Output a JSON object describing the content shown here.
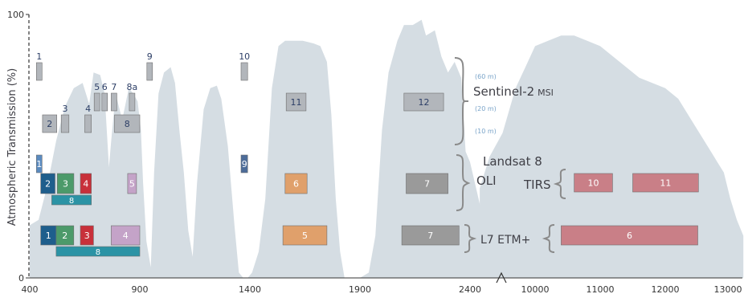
{
  "chart_data": {
    "type": "area",
    "title": "",
    "ylabel": "Atmospheric Transmission (%)",
    "ylim": [
      0,
      100
    ],
    "yticks": [
      "100",
      "0"
    ],
    "grid": false,
    "x_axis_break": "between 2400 and 10000",
    "xticks": [
      "400",
      "900",
      "1400",
      "1900",
      "2400",
      "10000",
      "11000",
      "12000",
      "13000"
    ],
    "colors": {
      "transmission": "#d5dde3",
      "sentinel": "#b2b6bb",
      "text": "#3f3f46",
      "axis": "#333333",
      "resolution_label": "#7aa4c9"
    },
    "transmission_reflective": {
      "unit": "nm",
      "points": [
        [
          400,
          20
        ],
        [
          440,
          22
        ],
        [
          480,
          35
        ],
        [
          520,
          52
        ],
        [
          560,
          65
        ],
        [
          600,
          72
        ],
        [
          640,
          74
        ],
        [
          670,
          66
        ],
        [
          690,
          78
        ],
        [
          720,
          77
        ],
        [
          740,
          70
        ],
        [
          760,
          42
        ],
        [
          770,
          52
        ],
        [
          790,
          70
        ],
        [
          820,
          60
        ],
        [
          850,
          72
        ],
        [
          870,
          70
        ],
        [
          890,
          67
        ],
        [
          905,
          56
        ],
        [
          915,
          36
        ],
        [
          930,
          14
        ],
        [
          950,
          4
        ],
        [
          965,
          40
        ],
        [
          985,
          70
        ],
        [
          1010,
          78
        ],
        [
          1040,
          80
        ],
        [
          1060,
          74
        ],
        [
          1080,
          56
        ],
        [
          1100,
          40
        ],
        [
          1120,
          18
        ],
        [
          1140,
          8
        ],
        [
          1160,
          36
        ],
        [
          1190,
          64
        ],
        [
          1220,
          72
        ],
        [
          1250,
          73
        ],
        [
          1270,
          68
        ],
        [
          1300,
          50
        ],
        [
          1330,
          20
        ],
        [
          1350,
          2
        ],
        [
          1370,
          0
        ],
        [
          1390,
          0
        ],
        [
          1410,
          2
        ],
        [
          1440,
          10
        ],
        [
          1470,
          30
        ],
        [
          1500,
          72
        ],
        [
          1530,
          88
        ],
        [
          1560,
          90
        ],
        [
          1600,
          90
        ],
        [
          1640,
          90
        ],
        [
          1690,
          89
        ],
        [
          1720,
          88
        ],
        [
          1750,
          82
        ],
        [
          1770,
          62
        ],
        [
          1790,
          30
        ],
        [
          1810,
          10
        ],
        [
          1830,
          0
        ],
        [
          1900,
          0
        ],
        [
          1940,
          2
        ],
        [
          1970,
          16
        ],
        [
          2000,
          56
        ],
        [
          2030,
          78
        ],
        [
          2070,
          90
        ],
        [
          2100,
          96
        ],
        [
          2140,
          96
        ],
        [
          2180,
          98
        ],
        [
          2200,
          92
        ],
        [
          2240,
          94
        ],
        [
          2270,
          84
        ],
        [
          2300,
          78
        ],
        [
          2330,
          82
        ],
        [
          2360,
          76
        ],
        [
          2380,
          48
        ],
        [
          2400,
          44
        ],
        [
          2450,
          26
        ],
        [
          2490,
          20
        ],
        [
          2500,
          18
        ]
      ]
    },
    "transmission_thermal": {
      "unit": "nm",
      "points": [
        [
          9150,
          34
        ],
        [
          9300,
          46
        ],
        [
          9500,
          55
        ],
        [
          9700,
          72
        ],
        [
          9850,
          80
        ],
        [
          10000,
          88
        ],
        [
          10200,
          90
        ],
        [
          10400,
          92
        ],
        [
          10600,
          92
        ],
        [
          10800,
          90
        ],
        [
          11000,
          88
        ],
        [
          11200,
          84
        ],
        [
          11400,
          80
        ],
        [
          11600,
          76
        ],
        [
          11800,
          74
        ],
        [
          12000,
          72
        ],
        [
          12200,
          68
        ],
        [
          12400,
          60
        ],
        [
          12600,
          52
        ],
        [
          12800,
          44
        ],
        [
          12900,
          40
        ],
        [
          13000,
          30
        ],
        [
          13100,
          22
        ],
        [
          13200,
          16
        ]
      ]
    },
    "groups": [
      {
        "name": "Sentinel-2",
        "suffix": "MSI",
        "resolutions": [
          "(60 m)",
          "(20 m)",
          "(10 m)"
        ]
      },
      {
        "name": "Landsat 8",
        "sensors": [
          "OLI",
          "TIRS"
        ]
      },
      {
        "name": "L7 ETM+"
      }
    ],
    "bands": [
      {
        "group": "Sentinel-2",
        "row": "60m",
        "label": "1",
        "x0": 433,
        "x1": 453,
        "color": "#b2b6bb"
      },
      {
        "group": "Sentinel-2",
        "row": "60m",
        "label": "9",
        "x0": 935,
        "x1": 955,
        "color": "#b2b6bb"
      },
      {
        "group": "Sentinel-2",
        "row": "60m",
        "label": "10",
        "x0": 1360,
        "x1": 1390,
        "color": "#b2b6bb"
      },
      {
        "group": "Sentinel-2",
        "row": "20m",
        "label": "5",
        "x0": 698,
        "x1": 713,
        "color": "#b2b6bb"
      },
      {
        "group": "Sentinel-2",
        "row": "20m",
        "label": "6",
        "x0": 733,
        "x1": 748,
        "color": "#b2b6bb"
      },
      {
        "group": "Sentinel-2",
        "row": "20m",
        "label": "7",
        "x0": 773,
        "x1": 793,
        "color": "#b2b6bb"
      },
      {
        "group": "Sentinel-2",
        "row": "20m",
        "label": "8a",
        "x0": 855,
        "x1": 875,
        "color": "#b2b6bb"
      },
      {
        "group": "Sentinel-2",
        "row": "20m",
        "label": "11",
        "x0": 1565,
        "x1": 1655,
        "color": "#b2b6bb"
      },
      {
        "group": "Sentinel-2",
        "row": "20m",
        "label": "12",
        "x0": 2100,
        "x1": 2280,
        "color": "#b2b6bb"
      },
      {
        "group": "Sentinel-2",
        "row": "10m",
        "label": "2",
        "x0": 458,
        "x1": 523,
        "color": "#b2b6bb"
      },
      {
        "group": "Sentinel-2",
        "row": "10m",
        "label": "3",
        "x0": 543,
        "x1": 578,
        "color": "#b2b6bb"
      },
      {
        "group": "Sentinel-2",
        "row": "10m",
        "label": "4",
        "x0": 650,
        "x1": 680,
        "color": "#b2b6bb"
      },
      {
        "group": "Sentinel-2",
        "row": "10m",
        "label": "8",
        "x0": 785,
        "x1": 900,
        "color": "#b2b6bb"
      },
      {
        "group": "Landsat 8",
        "row": "OLI-1",
        "label": "1",
        "x0": 433,
        "x1": 453,
        "color": "#5b8bc0"
      },
      {
        "group": "Landsat 8",
        "row": "OLI-1",
        "label": "9",
        "x0": 1360,
        "x1": 1390,
        "color": "#4d6c99"
      },
      {
        "group": "Landsat 8",
        "row": "OLI-2",
        "label": "2",
        "x0": 450,
        "x1": 515,
        "color": "#1e5e8c"
      },
      {
        "group": "Landsat 8",
        "row": "OLI-2",
        "label": "3",
        "x0": 525,
        "x1": 600,
        "color": "#4c9a6a"
      },
      {
        "group": "Landsat 8",
        "row": "OLI-2",
        "label": "4",
        "x0": 630,
        "x1": 680,
        "color": "#c8303a"
      },
      {
        "group": "Landsat 8",
        "row": "OLI-2",
        "label": "5",
        "x0": 845,
        "x1": 885,
        "color": "#c4a3c8"
      },
      {
        "group": "Landsat 8",
        "row": "OLI-2",
        "label": "6",
        "x0": 1560,
        "x1": 1660,
        "color": "#e0a06b"
      },
      {
        "group": "Landsat 8",
        "row": "OLI-2",
        "label": "7",
        "x0": 2110,
        "x1": 2300,
        "color": "#9a9a9a"
      },
      {
        "group": "Landsat 8",
        "row": "OLI-3",
        "label": "8",
        "x0": 500,
        "x1": 680,
        "color": "#2b93a5"
      },
      {
        "group": "Landsat 8",
        "row": "TIRS",
        "label": "10",
        "x0": 10600,
        "x1": 11190,
        "color": "#c97f87"
      },
      {
        "group": "Landsat 8",
        "row": "TIRS",
        "label": "11",
        "x0": 11500,
        "x1": 12510,
        "color": "#c97f87"
      },
      {
        "group": "L7 ETM+",
        "row": "ETM-1",
        "label": "1",
        "x0": 450,
        "x1": 520,
        "color": "#1e5e8c"
      },
      {
        "group": "L7 ETM+",
        "row": "ETM-1",
        "label": "2",
        "x0": 520,
        "x1": 600,
        "color": "#4c9a6a"
      },
      {
        "group": "L7 ETM+",
        "row": "ETM-1",
        "label": "3",
        "x0": 630,
        "x1": 690,
        "color": "#c8303a"
      },
      {
        "group": "L7 ETM+",
        "row": "ETM-1",
        "label": "4",
        "x0": 770,
        "x1": 900,
        "color": "#c4a3c8"
      },
      {
        "group": "L7 ETM+",
        "row": "ETM-1",
        "label": "5",
        "x0": 1550,
        "x1": 1750,
        "color": "#e0a06b"
      },
      {
        "group": "L7 ETM+",
        "row": "ETM-1",
        "label": "7",
        "x0": 2090,
        "x1": 2350,
        "color": "#9a9a9a"
      },
      {
        "group": "L7 ETM+",
        "row": "ETM-2",
        "label": "8",
        "x0": 520,
        "x1": 900,
        "color": "#2b93a5"
      },
      {
        "group": "L7 ETM+",
        "row": "ETM-1",
        "label": "6",
        "x0": 10400,
        "x1": 12500,
        "color": "#c97f87"
      }
    ]
  }
}
